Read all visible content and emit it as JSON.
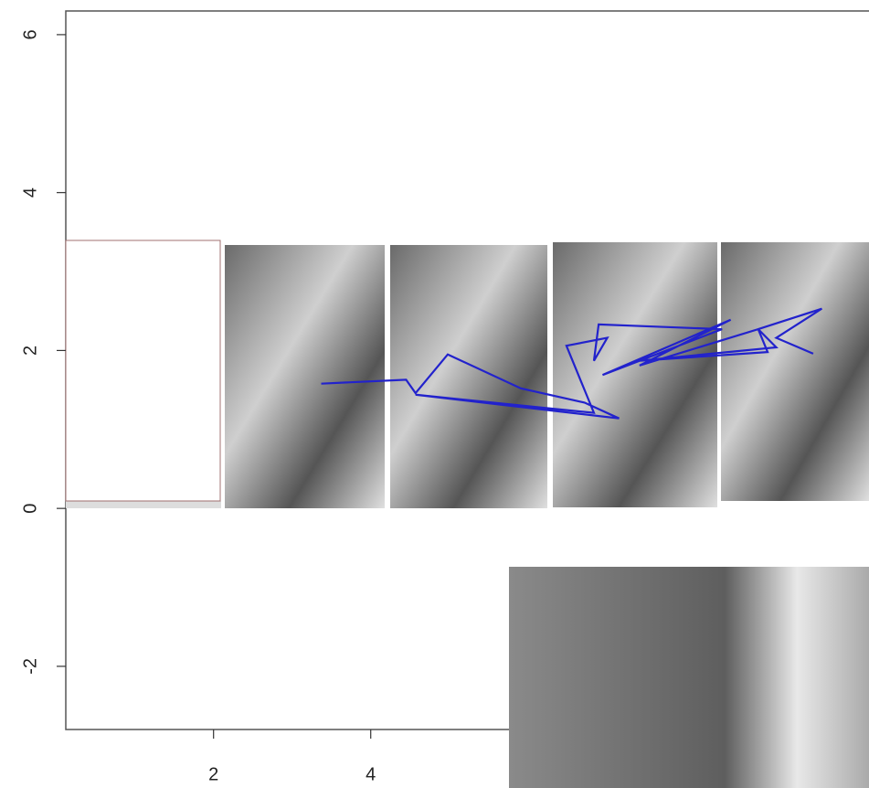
{
  "chart_data": {
    "type": "line",
    "x": [
      3.37,
      4.45,
      4.57,
      4.98,
      5.91,
      6.72,
      7.16,
      4.57,
      6.84,
      6.49,
      7.01,
      6.84,
      6.9,
      8.47,
      6.95,
      8.58,
      7.42,
      8.93,
      9.16,
      7.42,
      9.05,
      8.93,
      9.74,
      9.16,
      9.63
    ],
    "series": [
      {
        "color": "#2222cc",
        "values": [
          1.58,
          1.63,
          1.46,
          1.95,
          1.52,
          1.34,
          1.14,
          1.44,
          1.21,
          2.06,
          2.16,
          1.87,
          2.33,
          2.27,
          1.69,
          2.39,
          1.81,
          2.27,
          2.04,
          1.87,
          1.98,
          2.27,
          2.53,
          2.16,
          1.96
        ]
      }
    ],
    "xlim": [
      0.12,
      10.34
    ],
    "ylim": [
      -2.8,
      6.3
    ],
    "xticks": [
      2,
      4
    ],
    "yticks": [
      -2,
      0,
      2,
      4,
      6
    ]
  }
}
